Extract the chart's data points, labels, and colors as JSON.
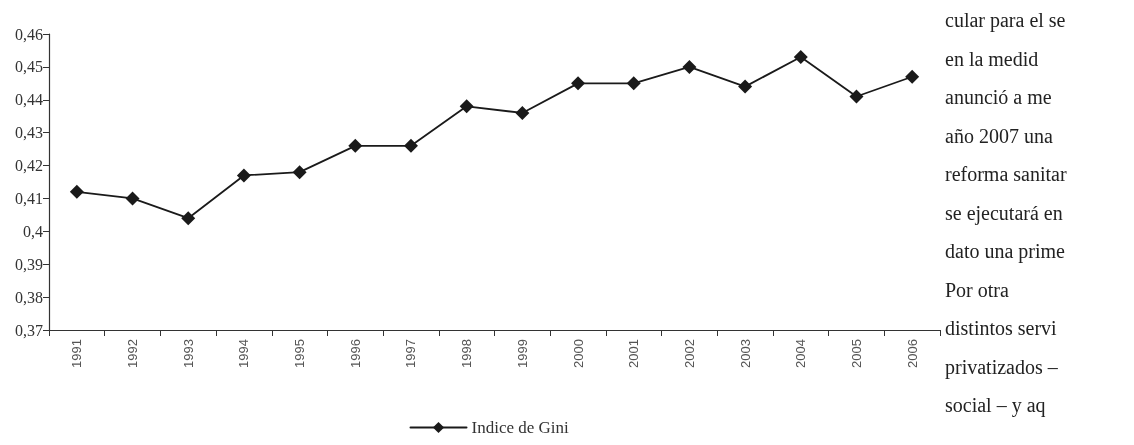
{
  "chart_data": {
    "type": "line",
    "categories": [
      "1991",
      "1992",
      "1993",
      "1994",
      "1995",
      "1996",
      "1997",
      "1998",
      "1999",
      "2000",
      "2001",
      "2002",
      "2003",
      "2004",
      "2005",
      "2006"
    ],
    "series": [
      {
        "name": "Indice de Gini",
        "color": "#1a1a1a",
        "values": [
          0.412,
          0.41,
          0.404,
          0.417,
          0.418,
          0.426,
          0.426,
          0.438,
          0.436,
          0.445,
          0.445,
          0.45,
          0.444,
          0.453,
          0.441,
          0.447
        ]
      }
    ],
    "ylim": [
      0.37,
      0.46
    ],
    "yticks": [
      {
        "value": 0.37,
        "label": "0,37"
      },
      {
        "value": 0.38,
        "label": "0,38"
      },
      {
        "value": 0.39,
        "label": "0,39"
      },
      {
        "value": 0.4,
        "label": "0,4"
      },
      {
        "value": 0.41,
        "label": "0,41"
      },
      {
        "value": 0.42,
        "label": "0,42"
      },
      {
        "value": 0.43,
        "label": "0,43"
      },
      {
        "value": 0.44,
        "label": "0,44"
      },
      {
        "value": 0.45,
        "label": "0,45"
      },
      {
        "value": 0.46,
        "label": "0,46"
      }
    ],
    "legend": "bottom",
    "marker": "diamond",
    "line_style": "solid",
    "annotations": [
      "cular para el se",
      "en la medid",
      "anunció a me",
      "año 2007 una",
      "reforma sanitar",
      "se ejecutará en",
      "dato una prime",
      "Por otra",
      "distintos servi",
      "privatizados –",
      "social – y aq"
    ]
  }
}
